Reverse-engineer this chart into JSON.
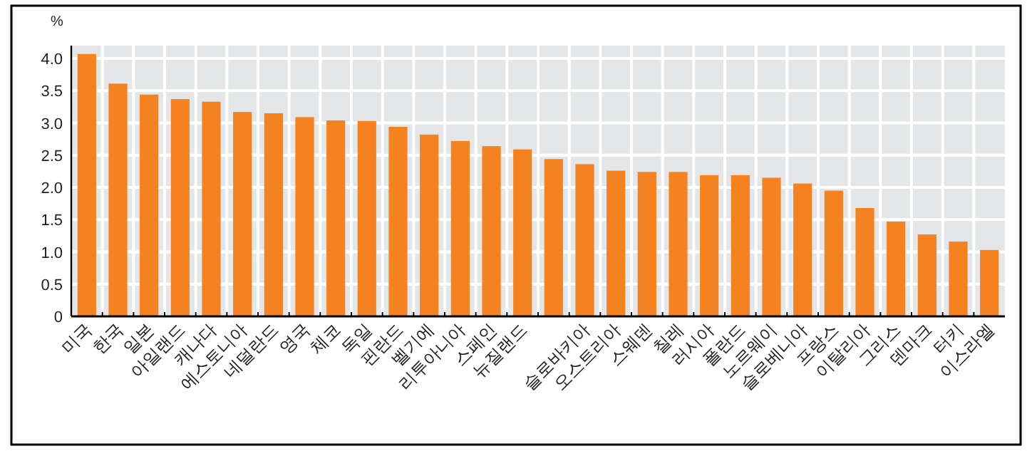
{
  "chart_data": {
    "type": "bar",
    "ylabel": "%",
    "color": "#f58220",
    "grid": true,
    "categories": [
      "미국",
      "한국",
      "일본",
      "아일랜드",
      "캐나다",
      "에스토니아",
      "네덜란드",
      "영국",
      "체코",
      "독일",
      "핀란드",
      "벨기에",
      "리투아니아",
      "스페인",
      "뉴질랜드",
      null,
      "슬로바키아",
      "오스트리아",
      "스웨덴",
      "칠레",
      "러시아",
      "폴란드",
      "노르웨이",
      "슬로베니아",
      "프랑스",
      "이탈리아",
      "그리스",
      "덴마크",
      "터키",
      "이스라엘"
    ],
    "values": [
      4.07,
      3.61,
      3.44,
      3.37,
      3.33,
      3.17,
      3.15,
      3.09,
      3.04,
      3.03,
      2.94,
      2.82,
      2.72,
      2.64,
      2.59,
      2.44,
      2.36,
      2.26,
      2.24,
      2.24,
      2.19,
      2.19,
      2.15,
      2.06,
      1.95,
      1.68,
      1.47,
      1.27,
      1.16,
      1.03
    ],
    "ylim": [
      0,
      4.2
    ],
    "yticks": [
      0,
      0.5,
      {
        "value": 1,
        "label": "1.0"
      },
      1.5,
      {
        "value": 2,
        "label": "2.0"
      },
      2.5,
      {
        "value": 3,
        "label": "3.0"
      },
      3.5,
      {
        "value": 4,
        "label": "4.0"
      }
    ]
  }
}
